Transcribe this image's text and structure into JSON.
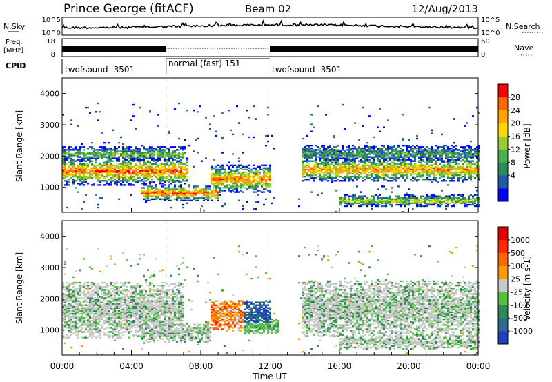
{
  "header": {
    "station": "Prince George (fitACF)",
    "beam": "Beam 02",
    "date": "12/Aug/2013"
  },
  "top_panels": {
    "nsky_label": "N.Sky",
    "nsky_ticks": [
      "10^5",
      "10^0"
    ],
    "nsearch_label": "N.Search",
    "nsearch_ticks": [
      "10^5",
      "10^0"
    ],
    "freq_label_1": "Freq.",
    "freq_label_2": "[MHz]",
    "freq_ticks": [
      "18",
      "8"
    ],
    "nave_label": "Nave",
    "nave_ticks": [
      "60",
      "0"
    ],
    "cpid_label": "CPID",
    "cpid_segments": [
      {
        "label": "twofsound -3501",
        "start_hour": 0,
        "end_hour": 6
      },
      {
        "label": "normal (fast) 151",
        "start_hour": 6,
        "end_hour": 12
      },
      {
        "label": "twofsound -3501",
        "start_hour": 12,
        "end_hour": 24
      }
    ]
  },
  "x_axis": {
    "label": "Time UT",
    "ticks": [
      "00:00",
      "04:00",
      "08:00",
      "12:00",
      "16:00",
      "20:00",
      "00:00"
    ]
  },
  "chart_data": [
    {
      "type": "heatmap",
      "quantity": "Power",
      "ylabel": "Slant Range [km]",
      "xlim_hours": [
        0,
        24
      ],
      "ylim_km": [
        200,
        4500
      ],
      "y_ticks": [
        "4000",
        "3000",
        "2000",
        "1000"
      ],
      "colorbar": {
        "label": "Power [dB]",
        "ticks": [
          "28",
          "24",
          "20",
          "16",
          "12",
          "8",
          "4"
        ],
        "colors": [
          "#0000ff",
          "#1e5aa8",
          "#2e8b57",
          "#4caf50",
          "#9acd32",
          "#ffd700",
          "#ffa500",
          "#ff6a00",
          "#ff0000"
        ]
      },
      "bands": [
        {
          "start_hour": 0,
          "end_hour": 7.2,
          "center_km": 1500,
          "width_km": 450,
          "intensity": 0.85
        },
        {
          "start_hour": 0,
          "end_hour": 7.0,
          "center_km": 2050,
          "width_km": 250,
          "intensity": 0.45
        },
        {
          "start_hour": 4.5,
          "end_hour": 9.0,
          "center_km": 800,
          "width_km": 250,
          "intensity": 0.9
        },
        {
          "start_hour": 8.5,
          "end_hour": 12.0,
          "center_km": 1250,
          "width_km": 450,
          "intensity": 0.8
        },
        {
          "start_hour": 13.8,
          "end_hour": 24,
          "center_km": 1550,
          "width_km": 400,
          "intensity": 0.75
        },
        {
          "start_hour": 13.8,
          "end_hour": 24,
          "center_km": 2050,
          "width_km": 300,
          "intensity": 0.35
        },
        {
          "start_hour": 16.0,
          "end_hour": 24,
          "center_km": 550,
          "width_km": 200,
          "intensity": 0.55
        }
      ]
    },
    {
      "type": "heatmap",
      "quantity": "Velocity",
      "ylabel": "Slant Range [km]",
      "xlim_hours": [
        0,
        24
      ],
      "ylim_km": [
        200,
        4500
      ],
      "y_ticks": [
        "4000",
        "3000",
        "2000",
        "1000"
      ],
      "colorbar": {
        "label": "Velocity [m s-1]",
        "ticks": [
          "1000",
          "500",
          "100",
          "25",
          "-25",
          "-100",
          "-500",
          "-1000"
        ],
        "colors": [
          "#1f3fbf",
          "#2e6b8f",
          "#2e8b57",
          "#55c040",
          "#c8c8c8",
          "#ff9900",
          "#ff6a00",
          "#ff2a00",
          "#e00000"
        ]
      },
      "bands": [
        {
          "start_hour": 0,
          "end_hour": 7.0,
          "center_km": 1600,
          "width_km": 900,
          "tone": "gray"
        },
        {
          "start_hour": 4.5,
          "end_hour": 8.5,
          "center_km": 900,
          "width_km": 300,
          "tone": "gray"
        },
        {
          "start_hour": 8.5,
          "end_hour": 10.5,
          "center_km": 1450,
          "width_km": 500,
          "tone": "orange"
        },
        {
          "start_hour": 10.0,
          "end_hour": 12.0,
          "center_km": 1450,
          "width_km": 500,
          "tone": "blue"
        },
        {
          "start_hour": 10.5,
          "end_hour": 12.5,
          "center_km": 1100,
          "width_km": 250,
          "tone": "green"
        },
        {
          "start_hour": 13.8,
          "end_hour": 24,
          "center_km": 1650,
          "width_km": 900,
          "tone": "gray"
        },
        {
          "start_hour": 16.0,
          "end_hour": 24,
          "center_km": 600,
          "width_km": 250,
          "tone": "gray"
        }
      ]
    }
  ]
}
